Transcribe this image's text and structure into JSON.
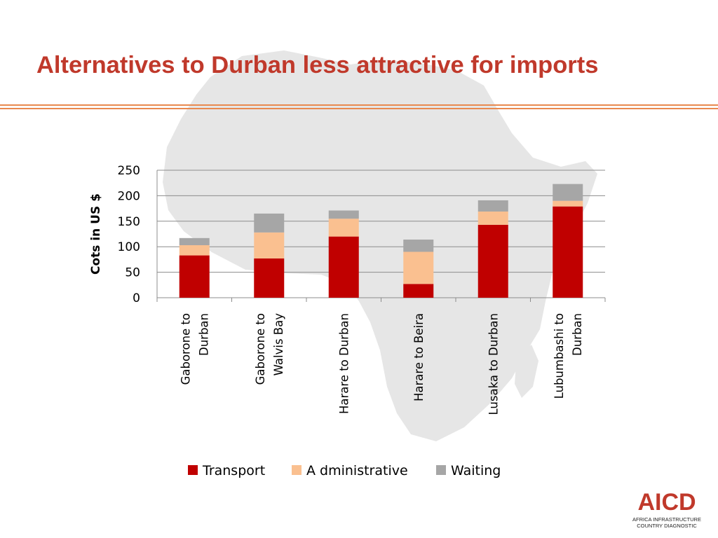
{
  "slide": {
    "title": "Alternatives to Durban less attractive for imports"
  },
  "logo": {
    "brand": "AICD",
    "line1": "AFRICA INFRASTRUCTURE",
    "line2": "COUNTRY DIAGNOSTIC"
  },
  "colors": {
    "title": "#c0392b",
    "rule": "#e8894f",
    "map": "#e6e6e6",
    "transport": "#c00000",
    "administrative": "#fac090",
    "waiting": "#a6a6a6"
  },
  "chart_data": {
    "type": "bar",
    "stacked": true,
    "title": "",
    "xlabel": "",
    "ylabel": "Cots in US $",
    "ylim": [
      0,
      250
    ],
    "yticks": [
      0,
      50,
      100,
      150,
      200,
      250
    ],
    "grid": true,
    "legend_position": "bottom",
    "categories": [
      [
        "Gaborone to",
        "Durban"
      ],
      [
        "Gaborone to",
        "Walvis Bay"
      ],
      [
        "Harare to Durban"
      ],
      [
        "Harare to Beira"
      ],
      [
        "Lusaka to Durban"
      ],
      [
        "Lubumbashi to",
        "Durban"
      ]
    ],
    "series": [
      {
        "name": "Transport",
        "color": "#c00000",
        "values": [
          83,
          77,
          120,
          27,
          143,
          179
        ]
      },
      {
        "name": "A dministrative",
        "color": "#fac090",
        "values": [
          20,
          51,
          35,
          63,
          26,
          11
        ]
      },
      {
        "name": "Waiting",
        "color": "#a6a6a6",
        "values": [
          14,
          37,
          16,
          24,
          22,
          33
        ]
      }
    ]
  }
}
